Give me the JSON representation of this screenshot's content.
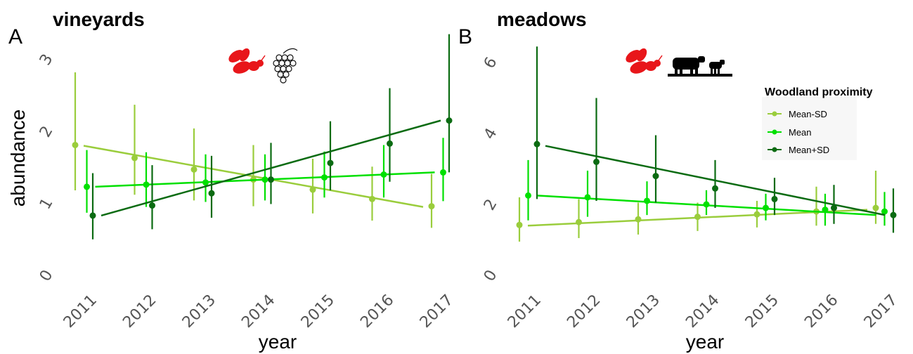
{
  "colors": {
    "mean_minus_sd": "#9ACD3C",
    "mean": "#00E000",
    "mean_plus_sd": "#0B6B12",
    "icon_red": "#E8161A",
    "icon_black": "#000000"
  },
  "legend": {
    "title": "Woodland proximity",
    "items": [
      "Mean-SD",
      "Mean",
      "Mean+SD"
    ]
  },
  "icons": {
    "panel_a": [
      "bee-icon",
      "grape-vine-icon"
    ],
    "panel_b": [
      "bee-icon",
      "cattle-icon"
    ]
  },
  "chart_data": [
    {
      "type": "line",
      "panel_letter": "A",
      "title": "vineyards",
      "xlabel": "year",
      "ylabel": "abundance",
      "x": [
        "2011",
        "2012",
        "2013",
        "2014",
        "2015",
        "2016",
        "2017"
      ],
      "ylim": [
        0,
        3.2
      ],
      "yticks": [
        "0",
        "1",
        "2",
        "3"
      ],
      "grid": false,
      "series": [
        {
          "name": "Mean-SD",
          "points": [
            1.81,
            1.63,
            1.47,
            1.33,
            1.19,
            1.06,
            0.96
          ],
          "lower": [
            1.18,
            1.12,
            1.04,
            0.96,
            0.86,
            0.76,
            0.66
          ],
          "upper": [
            2.82,
            2.37,
            2.04,
            1.81,
            1.62,
            1.51,
            1.41
          ],
          "trend": [
            1.8,
            0.95
          ]
        },
        {
          "name": "Mean",
          "points": [
            1.23,
            1.26,
            1.29,
            1.33,
            1.36,
            1.4,
            1.43
          ],
          "lower": [
            0.87,
            0.95,
            1.02,
            1.04,
            1.08,
            1.08,
            1.03
          ],
          "upper": [
            1.74,
            1.71,
            1.68,
            1.68,
            1.72,
            1.81,
            1.91
          ],
          "trend": [
            1.23,
            1.43
          ]
        },
        {
          "name": "Mean+SD",
          "points": [
            0.83,
            0.97,
            1.14,
            1.33,
            1.56,
            1.83,
            2.15
          ],
          "lower": [
            0.5,
            0.64,
            0.8,
            0.99,
            1.18,
            1.3,
            1.43
          ],
          "upper": [
            1.42,
            1.53,
            1.66,
            1.84,
            2.14,
            2.6,
            3.35
          ],
          "trend": [
            0.83,
            2.15
          ]
        }
      ]
    },
    {
      "type": "line",
      "panel_letter": "B",
      "title": "meadows",
      "xlabel": "year",
      "ylabel": "",
      "x": [
        "2011",
        "2012",
        "2013",
        "2014",
        "2015",
        "2016",
        "2017"
      ],
      "ylim": [
        0,
        6.6
      ],
      "yticks": [
        "0",
        "2",
        "4",
        "6"
      ],
      "grid": false,
      "legend_position": "top-right",
      "series": [
        {
          "name": "Mean-SD",
          "points": [
            1.42,
            1.5,
            1.58,
            1.65,
            1.72,
            1.8,
            1.9
          ],
          "lower": [
            0.95,
            1.05,
            1.15,
            1.25,
            1.35,
            1.4,
            1.45
          ],
          "upper": [
            2.2,
            2.15,
            2.05,
            2.05,
            2.1,
            2.5,
            2.95
          ],
          "trend": [
            1.4,
            1.85
          ]
        },
        {
          "name": "Mean",
          "points": [
            2.25,
            2.2,
            2.1,
            2.0,
            1.9,
            1.85,
            1.8
          ],
          "lower": [
            1.55,
            1.65,
            1.7,
            1.7,
            1.55,
            1.4,
            1.4
          ],
          "upper": [
            3.25,
            2.95,
            2.65,
            2.4,
            2.3,
            2.3,
            2.35
          ],
          "trend": [
            2.25,
            1.7
          ]
        },
        {
          "name": "Mean+SD",
          "points": [
            3.7,
            3.2,
            2.8,
            2.45,
            2.15,
            1.9,
            1.7
          ],
          "lower": [
            2.15,
            2.1,
            2.05,
            1.9,
            1.7,
            1.45,
            1.2
          ],
          "upper": [
            6.45,
            5.0,
            3.95,
            3.25,
            2.75,
            2.55,
            2.45
          ],
          "trend": [
            3.65,
            1.7
          ]
        }
      ]
    }
  ]
}
